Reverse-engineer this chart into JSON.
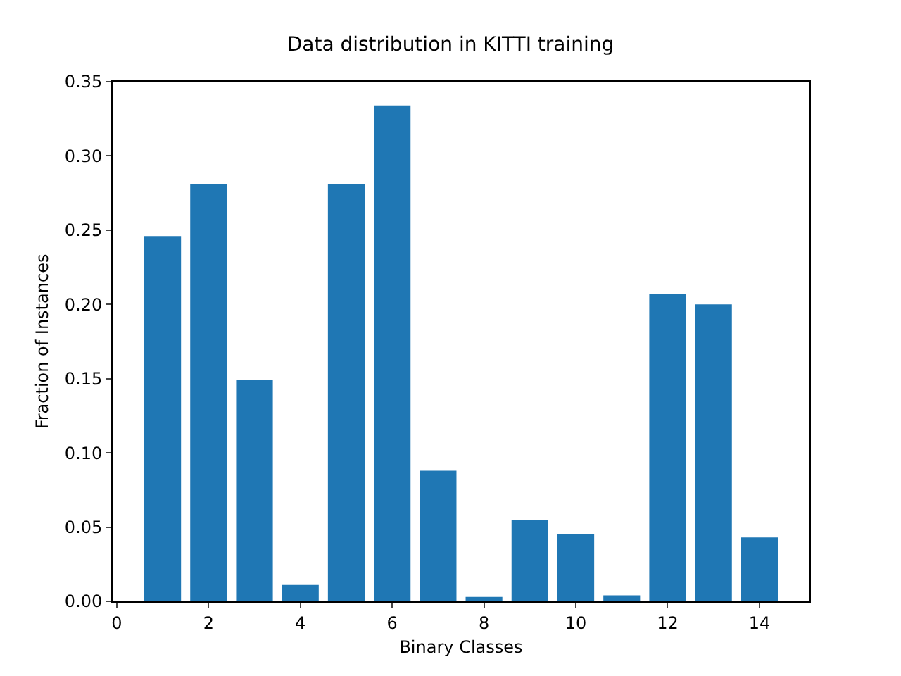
{
  "chart_data": {
    "type": "bar",
    "title": "Data distribution in KITTI training",
    "xlabel": "Binary Classes",
    "ylabel": "Fraction of Instances",
    "x": [
      1,
      2,
      3,
      4,
      5,
      6,
      7,
      8,
      9,
      10,
      11,
      12,
      13,
      14
    ],
    "values": [
      0.246,
      0.281,
      0.149,
      0.011,
      0.281,
      0.334,
      0.088,
      0.003,
      0.055,
      0.045,
      0.004,
      0.207,
      0.2,
      0.043
    ],
    "color": "#1f77b4",
    "xlim": [
      -0.09,
      15.09
    ],
    "xticks": [
      0,
      2,
      4,
      6,
      8,
      10,
      12,
      14
    ],
    "ylim": [
      0,
      0.35
    ],
    "yticks": [
      {
        "value": 0,
        "label": "0.00"
      },
      {
        "value": 0.05,
        "label": "0.05"
      },
      {
        "value": 0.1,
        "label": "0.10"
      },
      {
        "value": 0.15,
        "label": "0.15"
      },
      {
        "value": 0.2,
        "label": "0.20"
      },
      {
        "value": 0.25,
        "label": "0.25"
      },
      {
        "value": 0.3,
        "label": "0.30"
      },
      {
        "value": 0.35,
        "label": "0.35"
      }
    ],
    "grid": false,
    "legend": false
  }
}
